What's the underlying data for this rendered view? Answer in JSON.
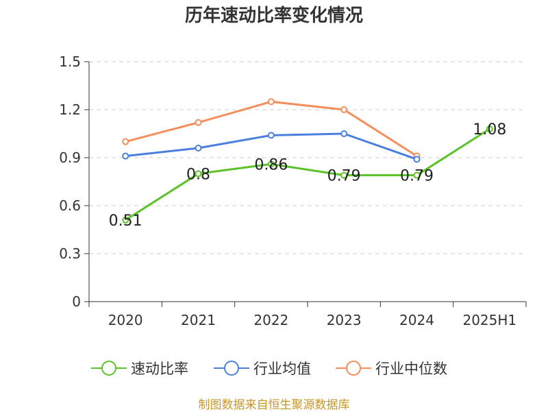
{
  "chart_data": {
    "type": "line",
    "title": "历年速动比率变化情况",
    "categories": [
      "2020",
      "2021",
      "2022",
      "2023",
      "2024",
      "2025H1"
    ],
    "ylim": [
      0,
      1.5
    ],
    "yticks": [
      "0",
      "0.3",
      "0.6",
      "0.9",
      "1.2",
      "1.5"
    ],
    "grid": true,
    "legend_position": "bottom",
    "series": [
      {
        "name": "速动比率",
        "color": "#5bc22a",
        "values": [
          0.51,
          0.8,
          0.86,
          0.79,
          0.79,
          1.08
        ],
        "labels": [
          "0.51",
          "0.8",
          "0.86",
          "0.79",
          "0.79",
          "1.08"
        ]
      },
      {
        "name": "行业均值",
        "color": "#4a7fe0",
        "values": [
          0.91,
          0.96,
          1.04,
          1.05,
          0.89,
          null
        ]
      },
      {
        "name": "行业中位数",
        "color": "#f58e5b",
        "values": [
          1.0,
          1.12,
          1.25,
          1.2,
          0.91,
          null
        ]
      }
    ]
  },
  "source": "制图数据来自恒生聚源数据库"
}
